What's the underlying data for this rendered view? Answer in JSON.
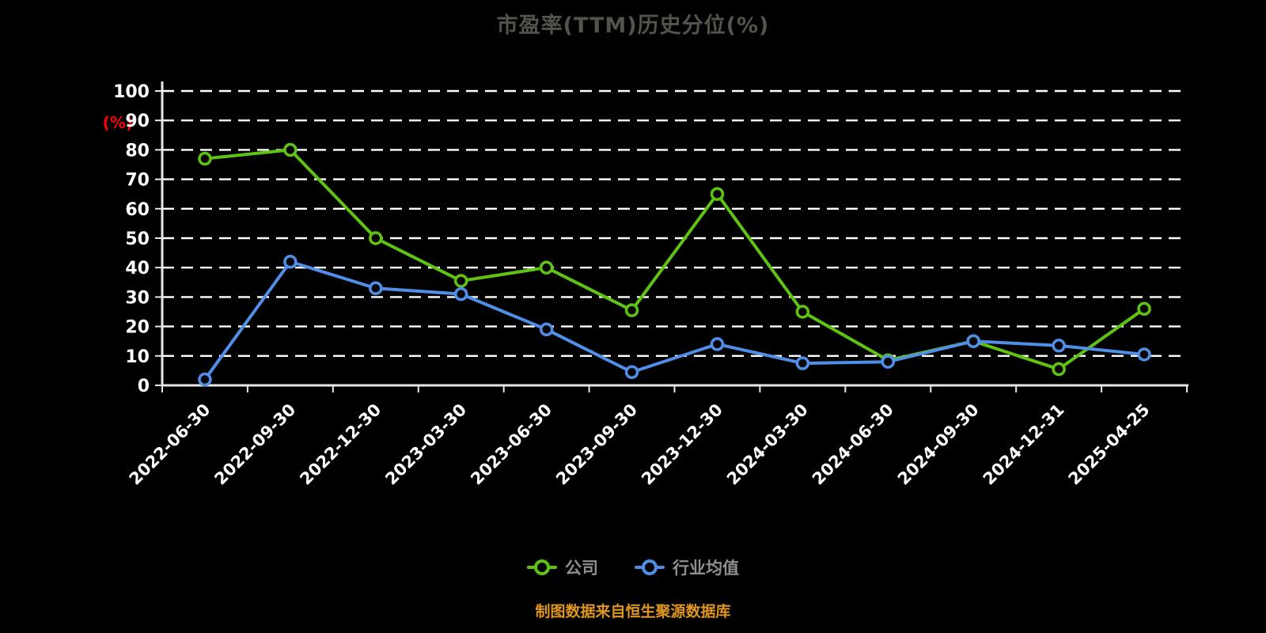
{
  "page": {
    "title": "市盈率(TTM)历史分位(%)",
    "caption": "制图数据来自恒生聚源数据库"
  },
  "axis": {
    "y_unit_label": "(%)",
    "y_unit_color": "#ff0000",
    "axis_color": "#e8e8e8",
    "tick_label_color": "#ffffff",
    "grid_color": "#ffffff"
  },
  "legend": {
    "items": [
      {
        "label": "公司",
        "color": "#5fc314"
      },
      {
        "label": "行业均值",
        "color": "#4f8fe8"
      }
    ]
  },
  "chart_data": {
    "type": "line",
    "title": "市盈率(TTM)历史分位(%)",
    "categories": [
      "2022-06-30",
      "2022-09-30",
      "2022-12-30",
      "2023-03-30",
      "2023-06-30",
      "2023-09-30",
      "2023-12-30",
      "2024-03-30",
      "2024-06-30",
      "2024-09-30",
      "2024-12-31",
      "2025-04-25"
    ],
    "series": [
      {
        "name": "公司",
        "color": "#5fc314",
        "values": [
          77,
          80,
          50,
          35.5,
          40,
          25.5,
          65,
          25,
          8.5,
          15,
          5.5,
          26
        ]
      },
      {
        "name": "行业均值",
        "color": "#4f8fe8",
        "values": [
          2,
          42,
          33,
          31,
          19,
          4.5,
          14,
          7.5,
          8,
          15,
          13.5,
          10.5
        ]
      }
    ],
    "xlabel": "",
    "ylabel": "(%)",
    "ylim": [
      0,
      100
    ],
    "yticks": [
      0,
      10,
      20,
      30,
      40,
      50,
      60,
      70,
      80,
      90,
      100
    ],
    "grid": "dashed-horizontal",
    "legend_position": "bottom"
  }
}
